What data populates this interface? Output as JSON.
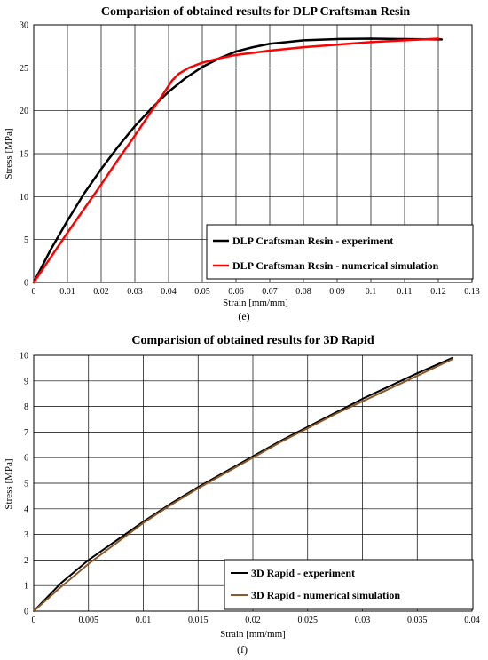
{
  "chart_data": [
    {
      "type": "line",
      "title": "Comparision of obtained results for DLP Craftsman Resin",
      "xlabel": "Strain [mm/mm]",
      "ylabel": "Stress [MPa]",
      "caption": "(e)",
      "xlim": [
        0,
        0.13
      ],
      "ylim": [
        0,
        30
      ],
      "xticks": [
        0,
        0.01,
        0.02,
        0.03,
        0.04,
        0.05,
        0.06,
        0.07,
        0.08,
        0.09,
        0.1,
        0.11,
        0.12,
        0.13
      ],
      "xtick_labels": [
        "0",
        "0.01",
        "0.02",
        "0.03",
        "0.04",
        "0.05",
        "0.06",
        "0.07",
        "0.08",
        "0.09",
        "0.1",
        "0.11",
        "0.12",
        "0.13"
      ],
      "yticks": [
        0,
        5,
        10,
        15,
        20,
        25,
        30
      ],
      "ytick_labels": [
        "0",
        "5",
        "10",
        "15",
        "20",
        "25",
        "30"
      ],
      "grid": true,
      "legend_position": "bottom-right",
      "series": [
        {
          "name": "DLP Craftsman Resin - experiment",
          "color": "#000000",
          "x": [
            0,
            0.005,
            0.01,
            0.015,
            0.02,
            0.025,
            0.03,
            0.035,
            0.04,
            0.045,
            0.05,
            0.055,
            0.06,
            0.065,
            0.07,
            0.075,
            0.08,
            0.09,
            0.1,
            0.11,
            0.121
          ],
          "y": [
            0,
            3.8,
            7.2,
            10.4,
            13.2,
            15.8,
            18.2,
            20.3,
            22.2,
            23.8,
            25.1,
            26.1,
            26.9,
            27.4,
            27.8,
            28.0,
            28.2,
            28.35,
            28.4,
            28.35,
            28.3
          ]
        },
        {
          "name": "DLP Craftsman Resin - numerical simulation",
          "color": "#ff0000",
          "x": [
            0,
            0.005,
            0.01,
            0.015,
            0.02,
            0.025,
            0.03,
            0.035,
            0.038,
            0.041,
            0.043,
            0.046,
            0.05,
            0.055,
            0.06,
            0.07,
            0.08,
            0.09,
            0.1,
            0.11,
            0.12
          ],
          "y": [
            0,
            2.9,
            5.8,
            8.6,
            11.4,
            14.3,
            17.1,
            20.0,
            21.7,
            23.5,
            24.3,
            25.0,
            25.6,
            26.1,
            26.5,
            27.0,
            27.4,
            27.7,
            28.0,
            28.2,
            28.4
          ]
        }
      ]
    },
    {
      "type": "line",
      "title": "Comparision of obtained results for 3D Rapid",
      "xlabel": "Strain [mm/mm]",
      "ylabel": "Stress [MPa]",
      "caption": "(f)",
      "xlim": [
        0,
        0.04
      ],
      "ylim": [
        0,
        10
      ],
      "xticks": [
        0,
        0.005,
        0.01,
        0.015,
        0.02,
        0.025,
        0.03,
        0.035,
        0.04
      ],
      "xtick_labels": [
        "0",
        "0.005",
        "0.01",
        "0.015",
        "0.02",
        "0.025",
        "0.03",
        "0.035",
        "0.04"
      ],
      "yticks": [
        0,
        1,
        2,
        3,
        4,
        5,
        6,
        7,
        8,
        9,
        10
      ],
      "ytick_labels": [
        "0",
        "1",
        "2",
        "3",
        "4",
        "5",
        "6",
        "7",
        "8",
        "9",
        "10"
      ],
      "grid": true,
      "legend_position": "bottom-right",
      "series": [
        {
          "name": "3D Rapid - experiment",
          "color": "#000000",
          "x": [
            0,
            0.0025,
            0.005,
            0.0075,
            0.01,
            0.0125,
            0.015,
            0.0175,
            0.02,
            0.0225,
            0.025,
            0.0275,
            0.03,
            0.0325,
            0.035,
            0.0382
          ],
          "y": [
            0,
            1.1,
            2.0,
            2.75,
            3.5,
            4.2,
            4.85,
            5.45,
            6.05,
            6.65,
            7.2,
            7.75,
            8.3,
            8.8,
            9.3,
            9.9
          ]
        },
        {
          "name": "3D Rapid - numerical simulation",
          "color": "#8b5a2b",
          "x": [
            0,
            0.0025,
            0.005,
            0.0075,
            0.01,
            0.0125,
            0.015,
            0.0175,
            0.02,
            0.0225,
            0.025,
            0.0275,
            0.03,
            0.0325,
            0.035,
            0.0382
          ],
          "y": [
            0,
            0.95,
            1.85,
            2.65,
            3.45,
            4.15,
            4.8,
            5.4,
            6.0,
            6.6,
            7.15,
            7.7,
            8.2,
            8.7,
            9.2,
            9.85
          ]
        }
      ]
    }
  ]
}
